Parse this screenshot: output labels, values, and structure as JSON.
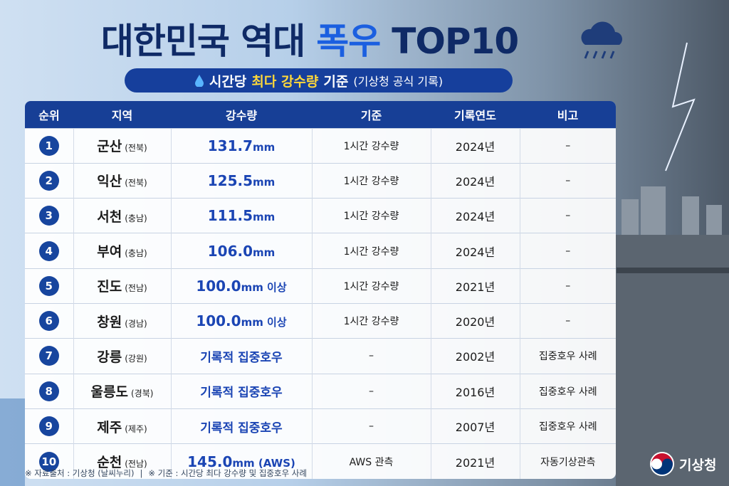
{
  "header": {
    "title_parts": [
      "대한민국 역대",
      "폭우",
      "TOP10"
    ],
    "subtitle_parts": [
      "시간당",
      "최다 강수량",
      "기준",
      "(기상청 공식 기록)"
    ]
  },
  "table": {
    "columns": [
      "순위",
      "지역",
      "강수량",
      "기준",
      "기록연도",
      "비고"
    ],
    "rows": [
      {
        "rank": "1",
        "region": "군산",
        "province": "(전북)",
        "amount": "131.7",
        "unit": "mm",
        "basis": "1시간 강수량",
        "year": "2024년",
        "remark": "–"
      },
      {
        "rank": "2",
        "region": "익산",
        "province": "(전북)",
        "amount": "125.5",
        "unit": "mm",
        "basis": "1시간 강수량",
        "year": "2024년",
        "remark": "–"
      },
      {
        "rank": "3",
        "region": "서천",
        "province": "(충남)",
        "amount": "111.5",
        "unit": "mm",
        "basis": "1시간 강수량",
        "year": "2024년",
        "remark": "–"
      },
      {
        "rank": "4",
        "region": "부여",
        "province": "(충남)",
        "amount": "106.0",
        "unit": "mm",
        "basis": "1시간 강수량",
        "year": "2024년",
        "remark": "–"
      },
      {
        "rank": "5",
        "region": "진도",
        "province": "(전남)",
        "amount": "100.0",
        "unit": "mm 이상",
        "basis": "1시간 강수량",
        "year": "2021년",
        "remark": "–"
      },
      {
        "rank": "6",
        "region": "창원",
        "province": "(경남)",
        "amount": "100.0",
        "unit": "mm 이상",
        "basis": "1시간 강수량",
        "year": "2020년",
        "remark": "–"
      },
      {
        "rank": "7",
        "region": "강릉",
        "province": "(강원)",
        "amount": "기록적 집중호우",
        "basis": "–",
        "year": "2002년",
        "remark": "집중호우 사례"
      },
      {
        "rank": "8",
        "region": "울릉도",
        "province": "(경북)",
        "amount": "기록적 집중호우",
        "basis": "–",
        "year": "2016년",
        "remark": "집중호우 사례"
      },
      {
        "rank": "9",
        "region": "제주",
        "province": "(제주)",
        "amount": "기록적 집중호우",
        "basis": "–",
        "year": "2007년",
        "remark": "집중호우 사례"
      },
      {
        "rank": "10",
        "region": "순천",
        "province": "(전남)",
        "amount": "145.0",
        "unit": "mm (AWS)",
        "basis": "AWS 관측",
        "year": "2021년",
        "remark": "자동기상관측"
      }
    ]
  },
  "footer": {
    "notes": [
      "※ 자료출처 : 기상청 (날씨누리)",
      "※ 기준 : 시간당 최다 강수량 및 집중호우 사례"
    ],
    "logo": "기상청"
  }
}
